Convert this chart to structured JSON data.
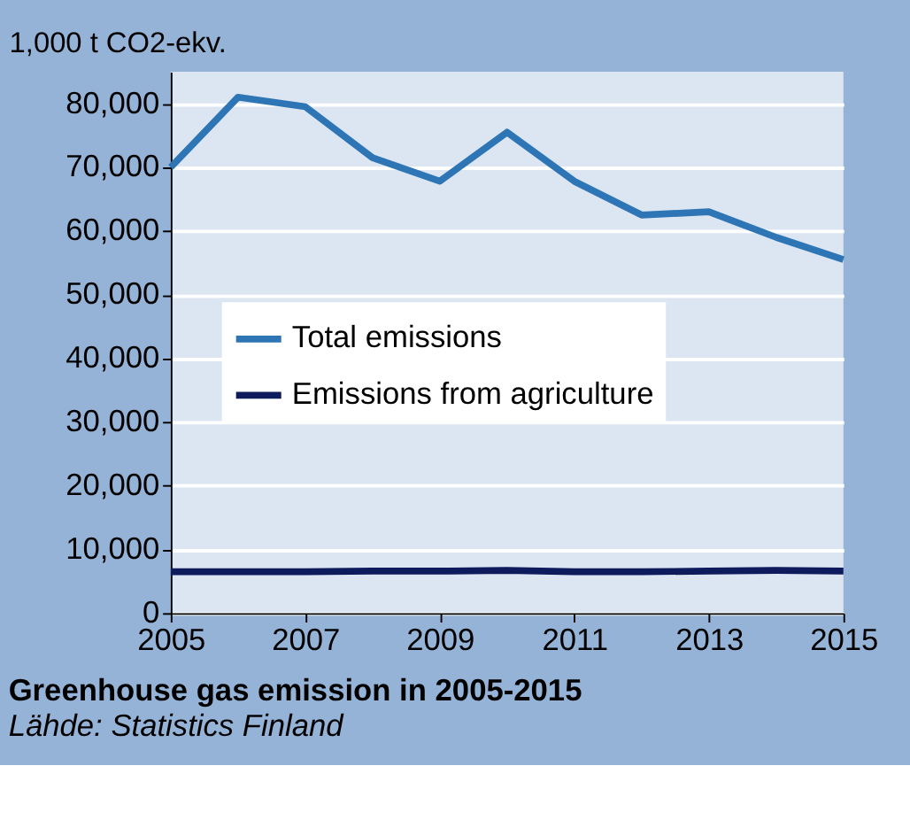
{
  "chart_data": {
    "type": "line",
    "title": "Greenhouse gas emission in 2005-2015",
    "ylabel": "1,000 t CO2-ekv.",
    "annotations": [
      "Lähde: Statistics Finland"
    ],
    "x": [
      2005,
      2006,
      2007,
      2008,
      2009,
      2010,
      2011,
      2012,
      2013,
      2014,
      2015
    ],
    "series": [
      {
        "name": "Total emissions",
        "color": "#2e75b6",
        "values": [
          70000,
          81000,
          79500,
          71500,
          67800,
          75500,
          67800,
          62500,
          63000,
          59000,
          55500
        ]
      },
      {
        "name": "Emissions from agriculture",
        "color": "#0d1a5c",
        "values": [
          6500,
          6500,
          6500,
          6600,
          6600,
          6700,
          6500,
          6500,
          6600,
          6700,
          6600
        ]
      }
    ],
    "xlim": [
      2005,
      2015
    ],
    "xticks": [
      2005,
      2007,
      2009,
      2011,
      2013,
      2015
    ],
    "ylim": [
      0,
      85000
    ],
    "yticks": [
      0,
      {
        "value": 10000,
        "label": "10,000"
      },
      {
        "value": 20000,
        "label": "20,000"
      },
      {
        "value": 30000,
        "label": "30,000"
      },
      {
        "value": 40000,
        "label": "40,000"
      },
      {
        "value": 50000,
        "label": "50,000"
      },
      {
        "value": 60000,
        "label": "60,000"
      },
      {
        "value": 70000,
        "label": "70,000"
      },
      {
        "value": 80000,
        "label": "80,000"
      }
    ],
    "grid": "y",
    "legend": "left",
    "marker": "none",
    "line_style": "solid"
  }
}
